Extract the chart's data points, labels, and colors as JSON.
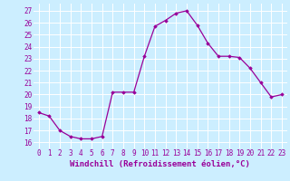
{
  "x": [
    0,
    1,
    2,
    3,
    4,
    5,
    6,
    7,
    8,
    9,
    10,
    11,
    12,
    13,
    14,
    15,
    16,
    17,
    18,
    19,
    20,
    21,
    22,
    23
  ],
  "y": [
    18.5,
    18.2,
    17.0,
    16.5,
    16.3,
    16.3,
    16.5,
    20.2,
    20.2,
    20.2,
    23.2,
    25.7,
    26.2,
    26.8,
    27.0,
    25.8,
    24.3,
    23.2,
    23.2,
    23.1,
    22.2,
    21.0,
    19.8,
    20.0
  ],
  "line_color": "#990099",
  "marker": "D",
  "markersize": 1.8,
  "linewidth": 0.9,
  "bg_color": "#cceeff",
  "grid_color": "#ffffff",
  "xlabel": "Windchill (Refroidissement éolien,°C)",
  "xlabel_fontsize": 6.5,
  "xtick_labels": [
    "0",
    "1",
    "2",
    "3",
    "4",
    "5",
    "6",
    "7",
    "8",
    "9",
    "10",
    "11",
    "12",
    "13",
    "14",
    "15",
    "16",
    "17",
    "18",
    "19",
    "20",
    "21",
    "22",
    "23"
  ],
  "ytick_min": 16,
  "ytick_max": 27,
  "ytick_step": 1,
  "ylim": [
    15.5,
    27.6
  ],
  "xlim": [
    -0.5,
    23.5
  ],
  "tick_fontsize": 5.5
}
